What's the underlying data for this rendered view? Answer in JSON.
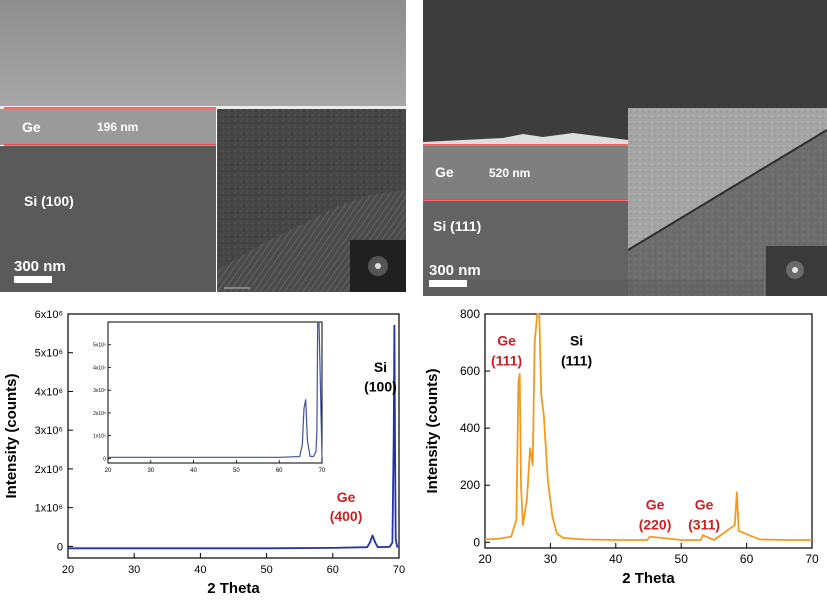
{
  "sem_left": {
    "layer_label": "Ge",
    "thickness_label": "196 nm",
    "substrate_label": "Si (100)",
    "scale_label": "300 nm"
  },
  "sem_right": {
    "layer_label": "Ge",
    "thickness_label": "520 nm",
    "substrate_label": "Si (111)",
    "scale_label": "300 nm"
  },
  "colors": {
    "left_series": "#2233aa",
    "right_series": "#f39a1e",
    "annotation_red": "#cc1f1f",
    "interface_line": "#ff3b3b"
  },
  "chart_data": [
    {
      "type": "line",
      "title": "",
      "xlabel": "2 Theta",
      "ylabel": "Intensity (counts)",
      "xlim": [
        20,
        70
      ],
      "ylim": [
        -300000,
        6000000
      ],
      "xticks": [
        "20",
        "30",
        "40",
        "50",
        "60",
        "70"
      ],
      "yticks": [
        "0",
        "1x10⁶",
        "2x10⁶",
        "3x10⁶",
        "4x10⁶",
        "5x10⁶",
        "6x10⁶"
      ],
      "ytick_values": [
        0,
        1000000,
        2000000,
        3000000,
        4000000,
        5000000,
        6000000
      ],
      "grid": false,
      "series": [
        {
          "x": [
            20,
            30,
            40,
            50,
            60,
            65.2,
            65.6,
            66.0,
            66.4,
            66.8,
            68.6,
            69.0,
            69.2,
            69.3,
            69.4,
            69.5,
            69.7,
            70
          ],
          "y": [
            -50000,
            -50000,
            -50000,
            -50000,
            -40000,
            -20000,
            100000,
            280000,
            100000,
            -20000,
            -10000,
            100000,
            2800000,
            5700000,
            2800000,
            200000,
            0,
            -20000
          ]
        }
      ],
      "annotations": [
        {
          "text": "Si",
          "x": 67.2,
          "y": 4500000,
          "color": "black"
        },
        {
          "text": "(100)",
          "x": 67.2,
          "y": 4000000,
          "color": "black"
        },
        {
          "text": "Ge",
          "x": 62.0,
          "y": 1150000,
          "color": "red"
        },
        {
          "text": "(400)",
          "x": 62.0,
          "y": 650000,
          "color": "red"
        }
      ],
      "inset": {
        "xlim": [
          20,
          70
        ],
        "ylim": [
          -20000,
          600000
        ],
        "xticks": [
          "20",
          "30",
          "40",
          "50",
          "60",
          "70"
        ],
        "yticks": [
          "0",
          "1x10⁵",
          "2x10⁵",
          "3x10⁵",
          "4x10⁵",
          "5x10⁵"
        ],
        "ytick_values": [
          0,
          100000,
          200000,
          300000,
          400000,
          500000
        ],
        "x": [
          20,
          30,
          40,
          50,
          60,
          64.8,
          65.4,
          65.8,
          66.2,
          66.6,
          67.2,
          68.0,
          68.6,
          68.8,
          69.0,
          69.3,
          70
        ],
        "y": [
          5000,
          5000,
          5000,
          5000,
          5000,
          8000,
          60000,
          220000,
          260000,
          80000,
          10000,
          8000,
          30000,
          120000,
          600000,
          600000,
          5000
        ]
      }
    },
    {
      "type": "line",
      "title": "",
      "xlabel": "2 Theta",
      "ylabel": "Intensity (counts)",
      "xlim": [
        20,
        70
      ],
      "ylim": [
        -20,
        800
      ],
      "xticks": [
        "20",
        "30",
        "40",
        "50",
        "60",
        "70"
      ],
      "yticks": [
        "0",
        "200",
        "400",
        "600",
        "800"
      ],
      "ytick_values": [
        0,
        200,
        400,
        600,
        800
      ],
      "grid": false,
      "series": [
        {
          "x": [
            20,
            22,
            24,
            24.8,
            25.1,
            25.3,
            25.5,
            25.8,
            26.4,
            26.9,
            27.3,
            27.6,
            28.0,
            28.3,
            28.6,
            29.0,
            29.6,
            30.3,
            31.0,
            32,
            35,
            40,
            44.8,
            45.2,
            50,
            53.0,
            53.3,
            55,
            58.2,
            58.5,
            58.8,
            62,
            66,
            70
          ],
          "y": [
            10,
            12,
            20,
            80,
            560,
            590,
            200,
            60,
            150,
            330,
            270,
            700,
            800,
            800,
            520,
            440,
            220,
            90,
            30,
            15,
            10,
            8,
            8,
            20,
            8,
            8,
            25,
            8,
            60,
            175,
            40,
            10,
            8,
            8
          ]
        }
      ],
      "annotations": [
        {
          "text": "Ge",
          "x": 23.3,
          "y": 690,
          "color": "red"
        },
        {
          "text": "(111)",
          "x": 23.3,
          "y": 620,
          "color": "red"
        },
        {
          "text": "Si",
          "x": 34.0,
          "y": 690,
          "color": "black"
        },
        {
          "text": "(111)",
          "x": 34.0,
          "y": 620,
          "color": "black"
        },
        {
          "text": "Ge",
          "x": 46.0,
          "y": 115,
          "color": "red"
        },
        {
          "text": "(220)",
          "x": 46.0,
          "y": 45,
          "color": "red"
        },
        {
          "text": "Ge",
          "x": 53.5,
          "y": 115,
          "color": "red"
        },
        {
          "text": "(311)",
          "x": 53.5,
          "y": 45,
          "color": "red"
        }
      ]
    }
  ]
}
